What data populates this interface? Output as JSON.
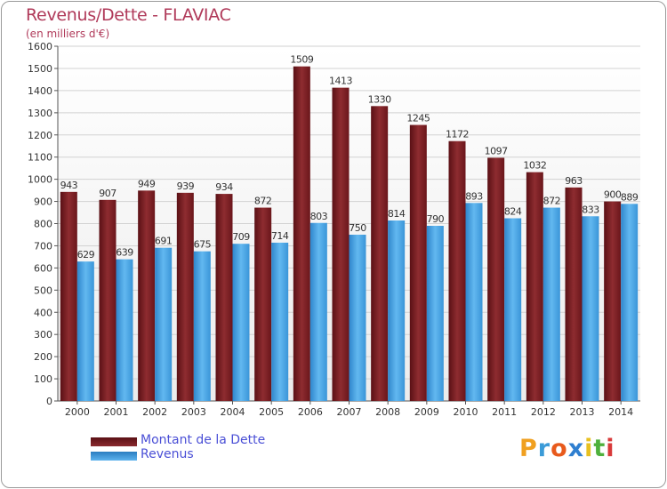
{
  "title": "Revenus/Dette - FLAVIAC",
  "subtitle": "(en milliers d'€)",
  "chart_data": {
    "type": "bar",
    "categories": [
      "2000",
      "2001",
      "2002",
      "2003",
      "2004",
      "2005",
      "2006",
      "2007",
      "2008",
      "2009",
      "2010",
      "2011",
      "2012",
      "2013",
      "2014"
    ],
    "series": [
      {
        "name": "Montant de la Dette",
        "color": "#7a1e22",
        "values": [
          943,
          907,
          949,
          939,
          934,
          872,
          1509,
          1413,
          1330,
          1245,
          1172,
          1097,
          1032,
          963,
          900
        ]
      },
      {
        "name": "Revenus",
        "color": "#3a9be0",
        "values": [
          629,
          639,
          691,
          675,
          709,
          714,
          803,
          750,
          814,
          790,
          893,
          824,
          872,
          833,
          889
        ]
      }
    ],
    "yticks": [
      "0",
      "100",
      "200",
      "300",
      "400",
      "500",
      "600",
      "700",
      "800",
      "900",
      "1000",
      "1100",
      "1200",
      "1300",
      "1400",
      "1500",
      "1600"
    ],
    "ylim": [
      0,
      1600
    ],
    "grid": true,
    "legend_position": "bottom-left"
  },
  "legend": [
    {
      "label": "Montant de la Dette",
      "color": "#7a1e22"
    },
    {
      "label": "Revenus",
      "color": "#3a9be0"
    }
  ],
  "logo": {
    "text": "Proxiti",
    "colors": [
      "#f0a020",
      "#3b9bd8",
      "#e85a1c",
      "#2f7fd0",
      "#e8c020",
      "#4fb03c",
      "#d83a3a"
    ]
  }
}
